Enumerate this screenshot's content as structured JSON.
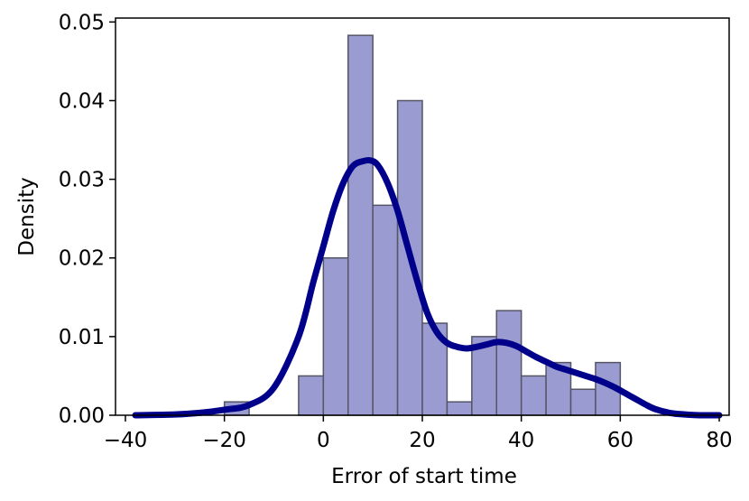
{
  "chart_data": {
    "type": "bar",
    "xlabel": "Error of start time",
    "ylabel": "Density",
    "xlim": [
      -42,
      82
    ],
    "ylim": [
      0,
      0.0505
    ],
    "x_ticks": [
      -40,
      -20,
      0,
      20,
      40,
      60,
      80
    ],
    "x_tick_labels": [
      "−40",
      "−20",
      "0",
      "20",
      "40",
      "60",
      "80"
    ],
    "y_ticks": [
      0.0,
      0.01,
      0.02,
      0.03,
      0.04,
      0.05
    ],
    "y_tick_labels": [
      "0.00",
      "0.01",
      "0.02",
      "0.03",
      "0.04",
      "0.05"
    ],
    "histogram": {
      "bins": [
        {
          "x0": -20,
          "x1": -15,
          "value": 0.0017
        },
        {
          "x0": -5,
          "x1": 0,
          "value": 0.005
        },
        {
          "x0": 0,
          "x1": 5,
          "value": 0.02
        },
        {
          "x0": 5,
          "x1": 10,
          "value": 0.0483
        },
        {
          "x0": 10,
          "x1": 15,
          "value": 0.0267
        },
        {
          "x0": 15,
          "x1": 20,
          "value": 0.04
        },
        {
          "x0": 20,
          "x1": 25,
          "value": 0.0117
        },
        {
          "x0": 25,
          "x1": 30,
          "value": 0.0017
        },
        {
          "x0": 30,
          "x1": 35,
          "value": 0.01
        },
        {
          "x0": 35,
          "x1": 40,
          "value": 0.0133
        },
        {
          "x0": 40,
          "x1": 45,
          "value": 0.005
        },
        {
          "x0": 45,
          "x1": 50,
          "value": 0.0067
        },
        {
          "x0": 50,
          "x1": 55,
          "value": 0.0033
        },
        {
          "x0": 55,
          "x1": 60,
          "value": 0.0067
        }
      ],
      "fill_color": "#9a9bd1",
      "edge_color": "#555566"
    },
    "kde": {
      "x": [
        -38,
        -30,
        -25,
        -20,
        -15,
        -10,
        -5,
        -2,
        0,
        2,
        4,
        6,
        8,
        9.5,
        11,
        13,
        15,
        17,
        19,
        21,
        23,
        25,
        27,
        29,
        31,
        33,
        35,
        37,
        39,
        41,
        43,
        45,
        47,
        49,
        51,
        53,
        55,
        57,
        59,
        61,
        63,
        65,
        67,
        70,
        73,
        76,
        80
      ],
      "y": [
        0.0,
        0.0001,
        0.0003,
        0.0007,
        0.0013,
        0.0035,
        0.01,
        0.017,
        0.0215,
        0.026,
        0.0295,
        0.0317,
        0.0323,
        0.0324,
        0.0318,
        0.0295,
        0.026,
        0.0215,
        0.017,
        0.013,
        0.0105,
        0.0092,
        0.0087,
        0.0085,
        0.0087,
        0.009,
        0.0093,
        0.0092,
        0.0088,
        0.0081,
        0.0074,
        0.0068,
        0.0062,
        0.0058,
        0.0054,
        0.005,
        0.0046,
        0.0041,
        0.0035,
        0.0028,
        0.0021,
        0.0014,
        0.0008,
        0.0003,
        0.0001,
        0.0,
        0.0
      ],
      "color": "#00008b"
    }
  }
}
